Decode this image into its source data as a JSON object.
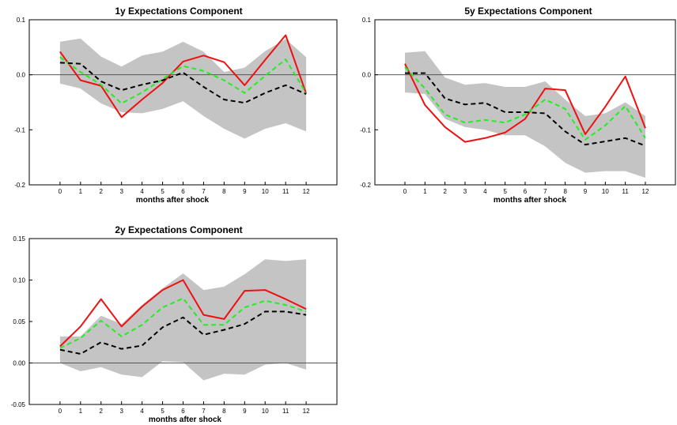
{
  "chart_data": [
    {
      "type": "line",
      "title": "1y Expectations Component",
      "xlabel": "months after shock",
      "ylabel": "",
      "x": [
        0,
        1,
        2,
        3,
        4,
        5,
        6,
        7,
        8,
        9,
        10,
        11,
        12
      ],
      "xlim": [
        -1.5,
        13.5
      ],
      "ylim": [
        -0.2,
        0.1
      ],
      "yticks": [
        "-0.2",
        "-0.1",
        "0.0",
        "0.1"
      ],
      "band_upper": [
        0.06,
        0.066,
        0.033,
        0.015,
        0.035,
        0.042,
        0.06,
        0.042,
        0.005,
        0.013,
        0.043,
        0.065,
        0.032
      ],
      "band_lower": [
        -0.016,
        -0.025,
        -0.052,
        -0.068,
        -0.07,
        -0.062,
        -0.048,
        -0.075,
        -0.098,
        -0.116,
        -0.098,
        -0.088,
        -0.103
      ],
      "series": [
        {
          "values": [
            0.042,
            -0.01,
            -0.02,
            -0.077,
            -0.045,
            -0.015,
            0.024,
            0.035,
            0.023,
            -0.019,
            0.027,
            0.072,
            -0.034
          ],
          "color": "#ee1111",
          "dash": false
        },
        {
          "values": [
            0.032,
            0.005,
            -0.018,
            -0.052,
            -0.032,
            -0.008,
            0.016,
            0.007,
            -0.01,
            -0.033,
            -0.002,
            0.028,
            -0.033
          ],
          "color": "#22ee22",
          "dash": true
        },
        {
          "values": [
            0.022,
            0.02,
            -0.012,
            -0.028,
            -0.018,
            -0.01,
            0.004,
            -0.022,
            -0.045,
            -0.051,
            -0.033,
            -0.019,
            -0.035
          ],
          "color": "#000000",
          "dash": true
        }
      ]
    },
    {
      "type": "line",
      "title": "5y Expectations Component",
      "xlabel": "months after shock",
      "ylabel": "",
      "x": [
        0,
        1,
        2,
        3,
        4,
        5,
        6,
        7,
        8,
        9,
        10,
        11,
        12
      ],
      "xlim": [
        -1.5,
        13.5
      ],
      "ylim": [
        -0.2,
        0.1
      ],
      "yticks": [
        "-0.2",
        "-0.1",
        "0.0",
        "0.1"
      ],
      "band_upper": [
        0.04,
        0.043,
        -0.005,
        -0.018,
        -0.015,
        -0.022,
        -0.022,
        -0.012,
        -0.045,
        -0.075,
        -0.07,
        -0.05,
        -0.075
      ],
      "band_lower": [
        -0.032,
        -0.035,
        -0.08,
        -0.095,
        -0.1,
        -0.11,
        -0.11,
        -0.13,
        -0.16,
        -0.178,
        -0.175,
        -0.175,
        -0.187
      ],
      "series": [
        {
          "values": [
            0.02,
            -0.055,
            -0.095,
            -0.122,
            -0.115,
            -0.105,
            -0.08,
            -0.025,
            -0.028,
            -0.108,
            -0.058,
            -0.003,
            -0.097
          ],
          "color": "#ee1111",
          "dash": false
        },
        {
          "values": [
            0.014,
            -0.025,
            -0.072,
            -0.087,
            -0.082,
            -0.087,
            -0.072,
            -0.045,
            -0.062,
            -0.118,
            -0.092,
            -0.057,
            -0.115
          ],
          "color": "#22ee22",
          "dash": true
        },
        {
          "values": [
            0.003,
            0.003,
            -0.043,
            -0.054,
            -0.051,
            -0.068,
            -0.068,
            -0.07,
            -0.103,
            -0.127,
            -0.121,
            -0.115,
            -0.129
          ],
          "color": "#000000",
          "dash": true
        }
      ]
    },
    {
      "type": "line",
      "title": "2y Expectations Component",
      "xlabel": "months after shock",
      "ylabel": "",
      "x": [
        0,
        1,
        2,
        3,
        4,
        5,
        6,
        7,
        8,
        9,
        10,
        11,
        12
      ],
      "xlim": [
        -1.5,
        13.5
      ],
      "ylim": [
        -0.05,
        0.15
      ],
      "yticks": [
        "-0.05",
        "0.00",
        "0.05",
        "0.10",
        "0.15"
      ],
      "band_upper": [
        0.032,
        0.032,
        0.057,
        0.047,
        0.07,
        0.09,
        0.108,
        0.088,
        0.092,
        0.107,
        0.125,
        0.123,
        0.125
      ],
      "band_lower": [
        0.0,
        -0.01,
        -0.005,
        -0.014,
        -0.017,
        0.002,
        0.001,
        -0.021,
        -0.013,
        -0.014,
        -0.002,
        0.0,
        -0.008
      ],
      "series": [
        {
          "values": [
            0.02,
            0.044,
            0.077,
            0.044,
            0.068,
            0.088,
            0.1,
            0.058,
            0.053,
            0.087,
            0.088,
            0.077,
            0.065
          ],
          "color": "#ee1111",
          "dash": false
        },
        {
          "values": [
            0.018,
            0.03,
            0.051,
            0.032,
            0.046,
            0.067,
            0.078,
            0.046,
            0.046,
            0.067,
            0.075,
            0.07,
            0.062
          ],
          "color": "#22ee22",
          "dash": true
        },
        {
          "values": [
            0.016,
            0.011,
            0.025,
            0.017,
            0.021,
            0.043,
            0.055,
            0.034,
            0.04,
            0.047,
            0.062,
            0.062,
            0.058
          ],
          "color": "#000000",
          "dash": true
        }
      ]
    }
  ]
}
